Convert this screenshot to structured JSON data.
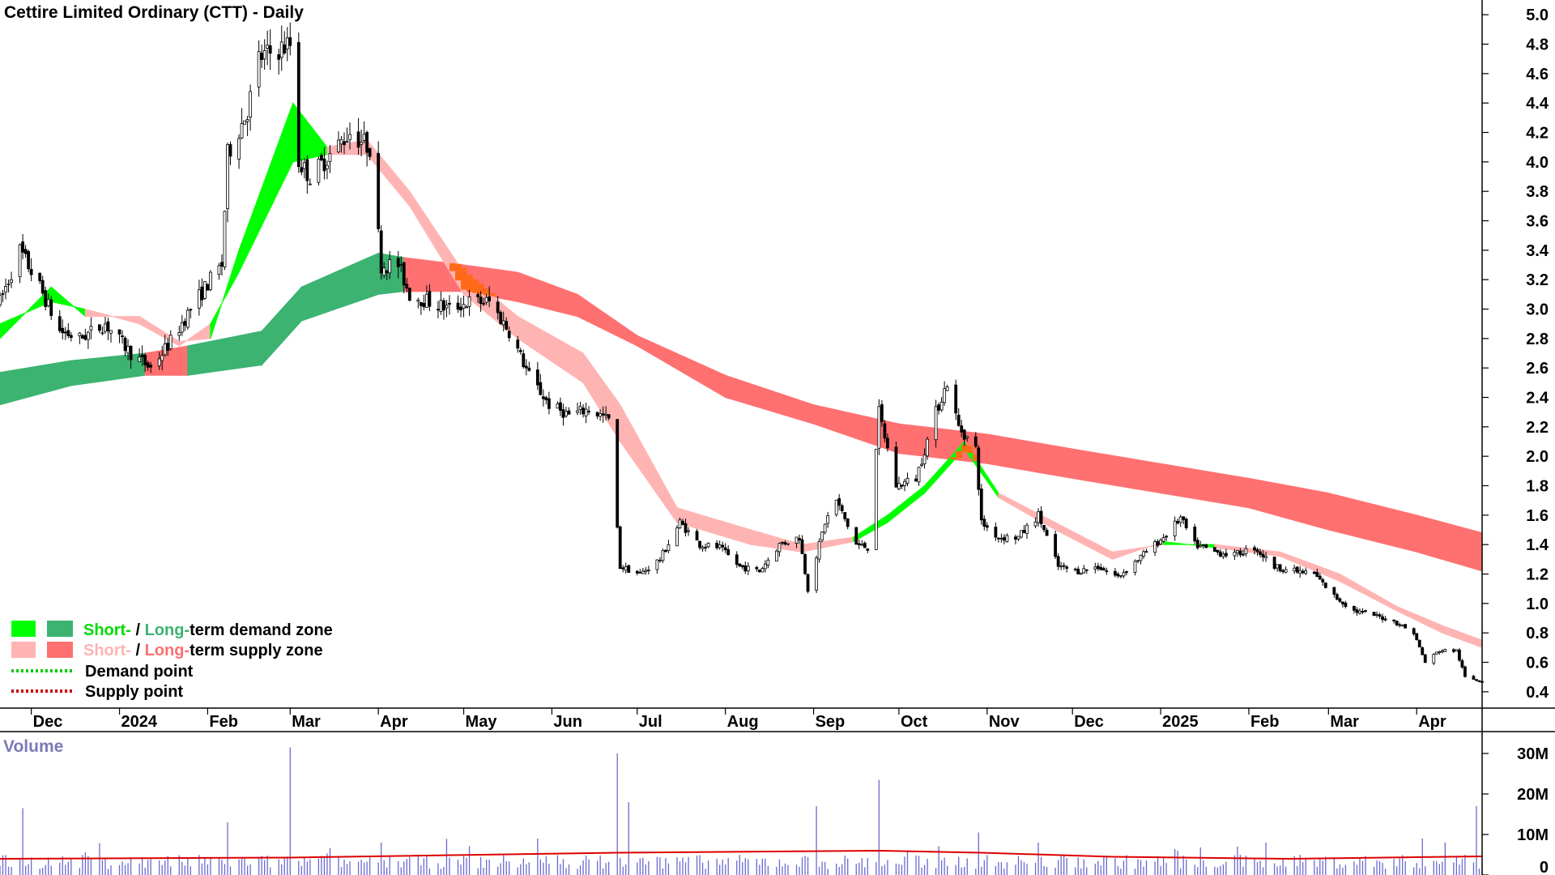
{
  "chart_data": [
    {
      "type": "candlestick",
      "title": "Cettire Limited Ordinary (CTT) - Daily",
      "ylim": [
        0.3,
        5.1
      ],
      "ytick_labels": [
        "5.0",
        "4.8",
        "4.6",
        "4.4",
        "4.2",
        "4.0",
        "3.8",
        "3.6",
        "3.4",
        "3.2",
        "3.0",
        "2.8",
        "2.6",
        "2.4",
        "2.2",
        "2.0",
        "1.8",
        "1.6",
        "1.4",
        "1.2",
        "1.0",
        "0.8",
        "0.6",
        "0.4"
      ],
      "ytick_values": [
        5.0,
        4.8,
        4.6,
        4.4,
        4.2,
        4.0,
        3.8,
        3.6,
        3.4,
        3.2,
        3.0,
        2.8,
        2.6,
        2.4,
        2.2,
        2.0,
        1.8,
        1.6,
        1.4,
        1.2,
        1.0,
        0.8,
        0.6,
        0.4
      ],
      "x_range": [
        "2023-11-20",
        "2025-04-24"
      ],
      "xtick_labels": [
        "Dec",
        "2024",
        "Feb",
        "Mar",
        "Apr",
        "May",
        "Jun",
        "Jul",
        "Aug",
        "Sep",
        "Oct",
        "Nov",
        "Dec",
        "2025",
        "Feb",
        "Mar",
        "Apr"
      ],
      "xtick_dates": [
        "2023-12-01",
        "2024-01-01",
        "2024-02-01",
        "2024-03-01",
        "2024-04-01",
        "2024-05-01",
        "2024-06-01",
        "2024-07-01",
        "2024-08-01",
        "2024-09-01",
        "2024-10-01",
        "2024-11-01",
        "2024-12-01",
        "2025-01-01",
        "2025-02-01",
        "2025-03-01",
        "2025-04-01"
      ],
      "price_path": [
        [
          "2023-11-20",
          3.05
        ],
        [
          "2023-11-27",
          3.4
        ],
        [
          "2023-12-04",
          3.15
        ],
        [
          "2023-12-11",
          2.85
        ],
        [
          "2023-12-18",
          2.8
        ],
        [
          "2023-12-27",
          2.9
        ],
        [
          "2024-01-05",
          2.7
        ],
        [
          "2024-01-12",
          2.6
        ],
        [
          "2024-01-19",
          2.78
        ],
        [
          "2024-01-26",
          3.0
        ],
        [
          "2024-02-02",
          3.2
        ],
        [
          "2024-02-06",
          3.3
        ],
        [
          "2024-02-08",
          4.05
        ],
        [
          "2024-02-15",
          4.35
        ],
        [
          "2024-02-19",
          4.7
        ],
        [
          "2024-02-24",
          4.75
        ],
        [
          "2024-03-01",
          4.8
        ],
        [
          "2024-03-04",
          4.0
        ],
        [
          "2024-03-08",
          3.9
        ],
        [
          "2024-03-15",
          4.05
        ],
        [
          "2024-03-22",
          4.2
        ],
        [
          "2024-03-29",
          4.1
        ],
        [
          "2024-04-02",
          3.3
        ],
        [
          "2024-04-08",
          3.3
        ],
        [
          "2024-04-12",
          3.1
        ],
        [
          "2024-04-19",
          3.05
        ],
        [
          "2024-04-26",
          3.0
        ],
        [
          "2024-05-03",
          3.05
        ],
        [
          "2024-05-10",
          3.05
        ],
        [
          "2024-05-17",
          2.85
        ],
        [
          "2024-05-24",
          2.55
        ],
        [
          "2024-05-31",
          2.35
        ],
        [
          "2024-06-07",
          2.28
        ],
        [
          "2024-06-14",
          2.32
        ],
        [
          "2024-06-21",
          2.25
        ],
        [
          "2024-06-25",
          1.25
        ],
        [
          "2024-07-02",
          1.2
        ],
        [
          "2024-07-09",
          1.3
        ],
        [
          "2024-07-16",
          1.55
        ],
        [
          "2024-07-23",
          1.4
        ],
        [
          "2024-07-30",
          1.38
        ],
        [
          "2024-08-06",
          1.25
        ],
        [
          "2024-08-13",
          1.22
        ],
        [
          "2024-08-20",
          1.4
        ],
        [
          "2024-08-27",
          1.45
        ],
        [
          "2024-08-30",
          1.1
        ],
        [
          "2024-09-05",
          1.55
        ],
        [
          "2024-09-09",
          1.7
        ],
        [
          "2024-09-16",
          1.4
        ],
        [
          "2024-09-20",
          1.38
        ],
        [
          "2024-09-24",
          2.3
        ],
        [
          "2024-09-30",
          1.8
        ],
        [
          "2024-10-07",
          1.85
        ],
        [
          "2024-10-14",
          2.3
        ],
        [
          "2024-10-18",
          2.5
        ],
        [
          "2024-10-22",
          2.2
        ],
        [
          "2024-10-28",
          2.05
        ],
        [
          "2024-10-30",
          1.55
        ],
        [
          "2024-11-05",
          1.45
        ],
        [
          "2024-11-12",
          1.45
        ],
        [
          "2024-11-19",
          1.6
        ],
        [
          "2024-11-26",
          1.25
        ],
        [
          "2024-12-03",
          1.22
        ],
        [
          "2024-12-10",
          1.25
        ],
        [
          "2024-12-17",
          1.18
        ],
        [
          "2024-12-24",
          1.3
        ],
        [
          "2025-01-02",
          1.45
        ],
        [
          "2025-01-08",
          1.58
        ],
        [
          "2025-01-13",
          1.4
        ],
        [
          "2025-01-20",
          1.35
        ],
        [
          "2025-01-27",
          1.33
        ],
        [
          "2025-02-03",
          1.38
        ],
        [
          "2025-02-10",
          1.25
        ],
        [
          "2025-02-17",
          1.22
        ],
        [
          "2025-02-24",
          1.2
        ],
        [
          "2025-03-03",
          1.05
        ],
        [
          "2025-03-10",
          0.95
        ],
        [
          "2025-03-17",
          0.92
        ],
        [
          "2025-03-24",
          0.88
        ],
        [
          "2025-03-31",
          0.8
        ],
        [
          "2025-04-04",
          0.6
        ],
        [
          "2025-04-09",
          0.68
        ],
        [
          "2025-04-15",
          0.68
        ],
        [
          "2025-04-18",
          0.5
        ],
        [
          "2025-04-24",
          0.47
        ]
      ],
      "short_term_band": [
        [
          "2023-11-20",
          2.8,
          2.9,
          "demand"
        ],
        [
          "2023-12-08",
          3.15,
          3.05,
          "demand"
        ],
        [
          "2023-12-20",
          2.95,
          3.0,
          "supply"
        ],
        [
          "2024-01-08",
          2.95,
          2.9,
          "supply"
        ],
        [
          "2024-01-22",
          2.78,
          2.75,
          "supply"
        ],
        [
          "2024-02-02",
          2.8,
          2.9,
          "demand"
        ],
        [
          "2024-02-12",
          3.4,
          3.25,
          "demand"
        ],
        [
          "2024-03-02",
          4.4,
          4.0,
          "demand"
        ],
        [
          "2024-03-14",
          4.1,
          4.05,
          "supply"
        ],
        [
          "2024-03-28",
          4.15,
          4.05,
          "supply"
        ],
        [
          "2024-04-12",
          3.8,
          3.7,
          "supply"
        ],
        [
          "2024-05-01",
          3.25,
          3.1,
          "supply"
        ],
        [
          "2024-05-20",
          2.95,
          2.8,
          "supply"
        ],
        [
          "2024-06-12",
          2.7,
          2.5,
          "supply"
        ],
        [
          "2024-06-25",
          2.35,
          2.1,
          "supply"
        ],
        [
          "2024-07-15",
          1.65,
          1.55,
          "supply"
        ],
        [
          "2024-08-10",
          1.5,
          1.4,
          "supply"
        ],
        [
          "2024-08-28",
          1.4,
          1.35,
          "supply"
        ],
        [
          "2024-09-15",
          1.45,
          1.42,
          "demand"
        ],
        [
          "2024-09-27",
          1.6,
          1.55,
          "demand"
        ],
        [
          "2024-10-10",
          1.8,
          1.75,
          "demand"
        ],
        [
          "2024-10-24",
          2.1,
          2.05,
          "demand"
        ],
        [
          "2024-11-05",
          1.75,
          1.72,
          "supply"
        ],
        [
          "2024-11-25",
          1.55,
          1.5,
          "supply"
        ],
        [
          "2024-12-15",
          1.35,
          1.3,
          "supply"
        ],
        [
          "2025-01-02",
          1.4,
          1.42,
          "demand"
        ],
        [
          "2025-01-20",
          1.4,
          1.38,
          "supply"
        ],
        [
          "2025-02-12",
          1.35,
          1.32,
          "supply"
        ],
        [
          "2025-03-05",
          1.2,
          1.15,
          "supply"
        ],
        [
          "2025-03-25",
          0.98,
          0.95,
          "supply"
        ],
        [
          "2025-04-10",
          0.85,
          0.8,
          "supply"
        ],
        [
          "2025-04-24",
          0.75,
          0.7,
          "supply"
        ]
      ],
      "long_term_band": [
        [
          "2023-11-20",
          2.57,
          2.35,
          "demand"
        ],
        [
          "2023-12-15",
          2.65,
          2.48,
          "demand"
        ],
        [
          "2024-01-10",
          2.7,
          2.55,
          "supply"
        ],
        [
          "2024-01-25",
          2.75,
          2.55,
          "demand"
        ],
        [
          "2024-02-20",
          2.85,
          2.62,
          "demand"
        ],
        [
          "2024-03-05",
          3.15,
          2.92,
          "demand"
        ],
        [
          "2024-04-01",
          3.38,
          3.1,
          "demand"
        ],
        [
          "2024-04-10",
          3.35,
          3.12,
          "supply"
        ],
        [
          "2024-05-01",
          3.3,
          3.12,
          "supply"
        ],
        [
          "2024-05-20",
          3.25,
          3.05,
          "supply"
        ],
        [
          "2024-06-10",
          3.1,
          2.95,
          "supply"
        ],
        [
          "2024-07-01",
          2.82,
          2.75,
          "supply"
        ],
        [
          "2024-08-01",
          2.55,
          2.4,
          "supply"
        ],
        [
          "2024-09-01",
          2.35,
          2.22,
          "supply"
        ],
        [
          "2024-10-01",
          2.22,
          2.02,
          "supply"
        ],
        [
          "2024-11-01",
          2.15,
          1.95,
          "supply"
        ],
        [
          "2024-12-01",
          2.05,
          1.85,
          "supply"
        ],
        [
          "2025-01-01",
          1.95,
          1.75,
          "supply"
        ],
        [
          "2025-02-01",
          1.85,
          1.65,
          "supply"
        ],
        [
          "2025-03-01",
          1.75,
          1.5,
          "supply"
        ],
        [
          "2025-04-01",
          1.6,
          1.35,
          "supply"
        ],
        [
          "2025-04-24",
          1.48,
          1.22,
          "supply"
        ]
      ],
      "band_colors": {
        "short_demand": "#00ff00",
        "long_demand": "#3cb371",
        "short_supply": "#ffb4b4",
        "long_supply": "#ff7070",
        "overlap": "#ff6a1a"
      },
      "legend": [
        {
          "short": "Short-",
          "sep": " / ",
          "long": "Long-",
          "rest": "term demand zone",
          "colors": [
            "#00ff00",
            "#3cb371"
          ]
        },
        {
          "short": "Short-",
          "sep": " / ",
          "long": "Long-",
          "rest": "term supply zone",
          "colors": [
            "#ffb4b4",
            "#ff7070"
          ]
        },
        {
          "label": "Demand point",
          "line_color": "#00cc00"
        },
        {
          "label": "Supply point",
          "line_color": "#cc0000"
        }
      ],
      "legend_placement": "bottom-left"
    },
    {
      "type": "bar",
      "title": "Volume",
      "ylim": [
        0,
        35
      ],
      "ytick_labels": [
        "30M",
        "20M",
        "10M",
        "0"
      ],
      "ytick_values": [
        30,
        20,
        10,
        0
      ],
      "bar_color": "#6a6ad0",
      "average_line_color": "#dd0000",
      "spikes": [
        [
          "2023-11-28",
          16.5
        ],
        [
          "2024-02-08",
          13.0
        ],
        [
          "2024-03-01",
          31.5
        ],
        [
          "2024-04-02",
          8.0
        ],
        [
          "2024-05-27",
          9.0
        ],
        [
          "2024-06-24",
          30.0
        ],
        [
          "2024-06-28",
          18.0
        ],
        [
          "2024-09-02",
          17.0
        ],
        [
          "2024-09-24",
          23.5
        ],
        [
          "2024-10-29",
          10.5
        ],
        [
          "2025-01-07",
          6.0
        ],
        [
          "2025-02-07",
          8.0
        ],
        [
          "2025-04-03",
          9.0
        ],
        [
          "2025-04-22",
          17.0
        ]
      ],
      "average_path": [
        [
          "2023-11-20",
          4.0
        ],
        [
          "2024-03-01",
          4.3
        ],
        [
          "2024-06-24",
          5.5
        ],
        [
          "2024-09-24",
          6.0
        ],
        [
          "2024-10-30",
          5.5
        ],
        [
          "2024-12-15",
          4.5
        ],
        [
          "2025-02-15",
          4.0
        ],
        [
          "2025-04-24",
          4.6
        ]
      ]
    }
  ]
}
